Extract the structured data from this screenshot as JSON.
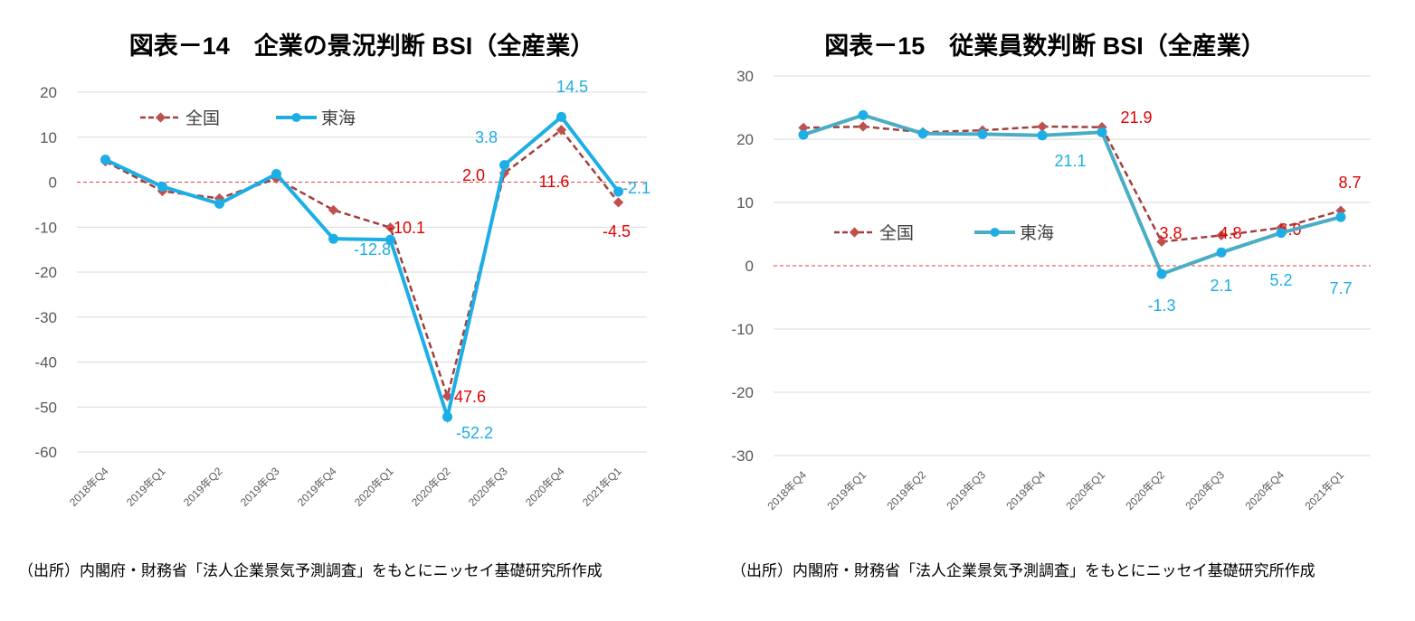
{
  "chart_data": [
    {
      "type": "line",
      "title": "図表－14　企業の景況判断 BSI（全産業）",
      "categories": [
        "2018年Q4",
        "2019年Q1",
        "2019年Q2",
        "2019年Q3",
        "2019年Q4",
        "2020年Q1",
        "2020年Q2",
        "2020年Q3",
        "2020年Q4",
        "2021年Q1"
      ],
      "ylim": [
        -60,
        20
      ],
      "yticks": [
        20,
        10,
        0,
        -10,
        -20,
        -30,
        -40,
        -50,
        -60
      ],
      "grid": true,
      "legend": "top-left",
      "series": [
        {
          "name": "全国",
          "color": "#A0403E",
          "style": "dashed-diamond",
          "values": [
            4.6,
            -2.0,
            -3.6,
            0.8,
            -6.2,
            -10.1,
            -47.6,
            2.0,
            11.6,
            -4.5
          ],
          "labels": [
            null,
            null,
            null,
            null,
            null,
            "-10.1",
            "-47.6",
            "2.0",
            "11.6",
            "-4.5"
          ],
          "label_color": "#E00000"
        },
        {
          "name": "東海",
          "color": "#1CAEE4",
          "style": "solid-circle",
          "values": [
            5.0,
            -1.0,
            -4.8,
            1.8,
            -12.6,
            -12.8,
            -52.2,
            3.8,
            14.5,
            -2.1
          ],
          "labels": [
            null,
            null,
            null,
            null,
            null,
            "-12.8",
            "-52.2",
            "3.8",
            "14.5",
            "-2.1"
          ],
          "label_color": "#1CAEE4"
        }
      ],
      "source": "（出所）内閣府・財務省「法人企業景気予測調査」をもとにニッセイ基礎研究所作成"
    },
    {
      "type": "line",
      "title": "図表－15　従業員数判断 BSI（全産業）",
      "categories": [
        "2018年Q4",
        "2019年Q1",
        "2019年Q2",
        "2019年Q3",
        "2019年Q4",
        "2020年Q1",
        "2020年Q2",
        "2020年Q3",
        "2020年Q4",
        "2021年Q1"
      ],
      "ylim": [
        -30,
        30
      ],
      "yticks": [
        30,
        20,
        10,
        0,
        -10,
        -20,
        -30
      ],
      "grid": true,
      "legend": "middle-left",
      "series": [
        {
          "name": "全国",
          "color": "#A0403E",
          "style": "dashed-diamond",
          "values": [
            21.8,
            22.0,
            21.1,
            21.4,
            22.0,
            21.9,
            3.8,
            4.8,
            6.0,
            8.7
          ],
          "labels": [
            null,
            null,
            null,
            null,
            null,
            "21.9",
            "3.8",
            "4.8",
            "6.0",
            "8.7"
          ],
          "label_color": "#E00000"
        },
        {
          "name": "東海",
          "color": "#4BACC6",
          "style": "solid-circle",
          "values": [
            20.7,
            23.8,
            20.9,
            20.8,
            20.6,
            21.1,
            -1.3,
            2.1,
            5.2,
            7.7
          ],
          "labels": [
            null,
            null,
            null,
            null,
            null,
            "21.1",
            "-1.3",
            "2.1",
            "5.2",
            "7.7"
          ],
          "label_color": "#1CAEE4"
        }
      ],
      "source": "（出所）内閣府・財務省「法人企業景気予測調査」をもとにニッセイ基礎研究所作成"
    }
  ]
}
